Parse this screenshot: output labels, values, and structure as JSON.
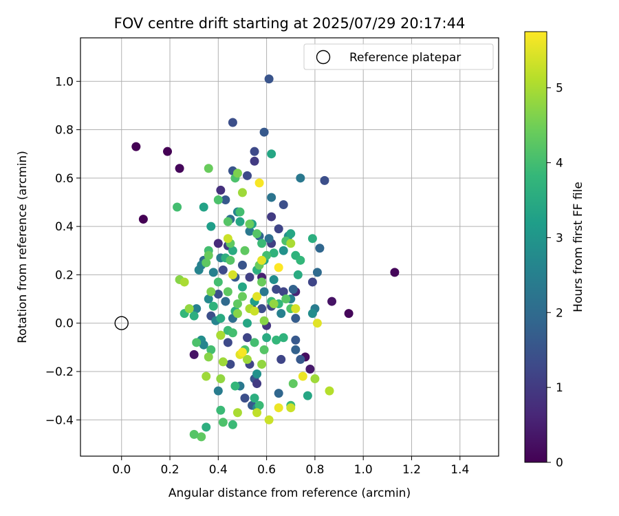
{
  "chart_data": {
    "type": "scatter",
    "title": "FOV centre drift starting at 2025/07/29 20:17:44",
    "xlabel": "Angular distance from reference (arcmin)",
    "ylabel": "Rotation from reference (arcmin)",
    "xlim": [
      -0.17,
      1.56
    ],
    "ylim": [
      -0.55,
      1.18
    ],
    "xticks": [
      0.0,
      0.2,
      0.4,
      0.6,
      0.8,
      1.0,
      1.2,
      1.4
    ],
    "yticks": [
      -0.4,
      -0.2,
      0.0,
      0.2,
      0.4,
      0.6,
      0.8,
      1.0
    ],
    "xtick_labels": [
      "0.0",
      "0.2",
      "0.4",
      "0.6",
      "0.8",
      "1.0",
      "1.2",
      "1.4"
    ],
    "ytick_labels": [
      "−0.4",
      "−0.2",
      "0.0",
      "0.2",
      "0.4",
      "0.6",
      "0.8",
      "1.0"
    ],
    "grid": true,
    "legend": {
      "placement": "top-right",
      "entries": [
        {
          "label": "Reference platepar",
          "marker": "open-circle",
          "color": "#000000"
        }
      ]
    },
    "reference_point": {
      "x": 0.0,
      "y": 0.0,
      "label": "Reference platepar"
    },
    "colorbar": {
      "label": "Hours from first FF file",
      "range": [
        0,
        5.75
      ],
      "ticks": [
        0,
        1,
        2,
        3,
        4,
        5
      ],
      "tick_labels": [
        "0",
        "1",
        "2",
        "3",
        "4",
        "5"
      ],
      "colormap": "viridis",
      "stops": [
        "#440154",
        "#482878",
        "#3e4989",
        "#31688e",
        "#26828e",
        "#1f9e89",
        "#35b779",
        "#6ece58",
        "#b5de2b",
        "#fde725"
      ]
    },
    "points": [
      [
        0.06,
        0.73,
        0.0
      ],
      [
        0.19,
        0.71,
        0.0
      ],
      [
        0.24,
        0.64,
        0.1
      ],
      [
        0.09,
        0.43,
        0.0
      ],
      [
        1.13,
        0.21,
        0.1
      ],
      [
        0.94,
        0.04,
        0.1
      ],
      [
        0.87,
        0.09,
        0.3
      ],
      [
        0.76,
        -0.14,
        0.2
      ],
      [
        0.78,
        -0.19,
        0.4
      ],
      [
        0.3,
        -0.13,
        0.3
      ],
      [
        0.61,
        1.01,
        1.5
      ],
      [
        0.46,
        0.83,
        1.4
      ],
      [
        0.59,
        0.79,
        1.6
      ],
      [
        0.55,
        0.71,
        1.3
      ],
      [
        0.55,
        0.67,
        1.0
      ],
      [
        0.46,
        0.63,
        1.5
      ],
      [
        0.52,
        0.61,
        1.3
      ],
      [
        0.41,
        0.55,
        0.8
      ],
      [
        0.43,
        0.51,
        1.6
      ],
      [
        0.84,
        0.59,
        1.4
      ],
      [
        0.67,
        0.49,
        1.4
      ],
      [
        0.62,
        0.44,
        1.0
      ],
      [
        0.65,
        0.39,
        1.2
      ],
      [
        0.62,
        0.33,
        1.1
      ],
      [
        0.5,
        0.24,
        1.5
      ],
      [
        0.4,
        0.33,
        0.7
      ],
      [
        0.44,
        0.32,
        1.0
      ],
      [
        0.42,
        0.22,
        1.3
      ],
      [
        0.47,
        0.19,
        1.6
      ],
      [
        0.53,
        0.19,
        1.1
      ],
      [
        0.58,
        0.19,
        0.5
      ],
      [
        0.64,
        0.14,
        1.3
      ],
      [
        0.67,
        0.13,
        1.2
      ],
      [
        0.72,
        0.13,
        0.6
      ],
      [
        0.71,
        0.14,
        1.8
      ],
      [
        0.79,
        0.17,
        1.2
      ],
      [
        0.82,
        0.31,
        1.9
      ],
      [
        0.81,
        0.21,
        2.0
      ],
      [
        0.54,
        0.06,
        1.0
      ],
      [
        0.58,
        0.06,
        1.4
      ],
      [
        0.6,
        -0.01,
        0.9
      ],
      [
        0.52,
        -0.06,
        1.2
      ],
      [
        0.44,
        -0.08,
        1.3
      ],
      [
        0.45,
        -0.17,
        1.3
      ],
      [
        0.53,
        -0.17,
        1.2
      ],
      [
        0.55,
        -0.23,
        1.5
      ],
      [
        0.56,
        -0.25,
        1.0
      ],
      [
        0.51,
        -0.31,
        1.4
      ],
      [
        0.54,
        -0.34,
        1.6
      ],
      [
        0.66,
        -0.15,
        1.2
      ],
      [
        0.72,
        -0.07,
        1.6
      ],
      [
        0.72,
        -0.11,
        1.8
      ],
      [
        0.74,
        -0.15,
        1.6
      ],
      [
        0.65,
        -0.29,
        1.9
      ],
      [
        0.72,
        0.02,
        1.7
      ],
      [
        0.62,
        0.07,
        1.2
      ],
      [
        0.55,
        0.09,
        1.3
      ],
      [
        0.4,
        0.12,
        1.4
      ],
      [
        0.37,
        0.03,
        1.4
      ],
      [
        0.34,
        0.26,
        2.0
      ],
      [
        0.74,
        0.6,
        2.3
      ],
      [
        0.62,
        0.52,
        2.2
      ],
      [
        0.48,
        0.46,
        2.6
      ],
      [
        0.45,
        0.43,
        2.1
      ],
      [
        0.53,
        0.38,
        2.3
      ],
      [
        0.41,
        0.27,
        2.4
      ],
      [
        0.38,
        0.21,
        2.5
      ],
      [
        0.36,
        0.1,
        2.7
      ],
      [
        0.32,
        0.22,
        2.6
      ],
      [
        0.33,
        0.24,
        2.5
      ],
      [
        0.31,
        0.06,
        2.5
      ],
      [
        0.33,
        -0.07,
        2.8
      ],
      [
        0.34,
        -0.09,
        2.6
      ],
      [
        0.4,
        -0.28,
        2.4
      ],
      [
        0.49,
        -0.26,
        2.3
      ],
      [
        0.56,
        -0.21,
        2.9
      ],
      [
        0.56,
        -0.35,
        2.7
      ],
      [
        0.59,
        0.13,
        2.3
      ],
      [
        0.63,
        0.18,
        2.8
      ],
      [
        0.67,
        0.3,
        2.9
      ],
      [
        0.69,
        0.36,
        2.8
      ],
      [
        0.7,
        0.1,
        2.5
      ],
      [
        0.8,
        0.06,
        2.4
      ],
      [
        0.79,
        0.04,
        2.8
      ],
      [
        0.66,
        0.04,
        2.5
      ],
      [
        0.61,
        0.35,
        2.1
      ],
      [
        0.57,
        0.36,
        1.9
      ],
      [
        0.43,
        0.09,
        2.0
      ],
      [
        0.46,
        0.02,
        2.1
      ],
      [
        0.39,
        0.01,
        2.6
      ],
      [
        0.62,
        0.7,
        3.4
      ],
      [
        0.34,
        0.48,
        3.3
      ],
      [
        0.37,
        0.4,
        3.2
      ],
      [
        0.49,
        0.42,
        3.4
      ],
      [
        0.54,
        0.41,
        3.3
      ],
      [
        0.46,
        0.3,
        3.5
      ],
      [
        0.43,
        0.27,
        3.6
      ],
      [
        0.59,
        0.26,
        3.3
      ],
      [
        0.63,
        0.29,
        3.7
      ],
      [
        0.7,
        0.37,
        3.4
      ],
      [
        0.73,
        0.2,
        3.5
      ],
      [
        0.72,
        0.28,
        3.7
      ],
      [
        0.74,
        0.26,
        3.8
      ],
      [
        0.79,
        0.35,
        3.6
      ],
      [
        0.77,
        -0.3,
        3.4
      ],
      [
        0.7,
        -0.34,
        3.9
      ],
      [
        0.55,
        -0.31,
        3.6
      ],
      [
        0.6,
        -0.06,
        3.5
      ],
      [
        0.64,
        -0.07,
        3.8
      ],
      [
        0.67,
        -0.06,
        3.7
      ],
      [
        0.65,
        0.08,
        3.8
      ],
      [
        0.62,
        0.09,
        3.9
      ],
      [
        0.56,
        0.22,
        3.6
      ],
      [
        0.58,
        0.33,
        3.9
      ],
      [
        0.5,
        0.15,
        3.4
      ],
      [
        0.55,
        0.09,
        3.2
      ],
      [
        0.52,
        0.0,
        3.4
      ],
      [
        0.47,
        0.05,
        3.6
      ],
      [
        0.41,
        0.02,
        3.5
      ],
      [
        0.38,
        0.07,
        3.7
      ],
      [
        0.3,
        0.03,
        3.6
      ],
      [
        0.26,
        0.04,
        3.8
      ],
      [
        0.44,
        -0.03,
        3.9
      ],
      [
        0.46,
        -0.04,
        4.0
      ],
      [
        0.47,
        -0.26,
        3.8
      ],
      [
        0.57,
        -0.34,
        3.9
      ],
      [
        0.41,
        -0.36,
        3.9
      ],
      [
        0.42,
        -0.41,
        4.1
      ],
      [
        0.46,
        -0.42,
        3.9
      ],
      [
        0.35,
        -0.43,
        3.6
      ],
      [
        0.23,
        0.48,
        4.0
      ],
      [
        0.36,
        0.3,
        4.0
      ],
      [
        0.4,
        0.51,
        4.1
      ],
      [
        0.47,
        0.6,
        4.1
      ],
      [
        0.49,
        0.46,
        4.0
      ],
      [
        0.44,
        0.42,
        4.2
      ],
      [
        0.45,
        0.33,
        4.3
      ],
      [
        0.53,
        0.41,
        4.4
      ],
      [
        0.56,
        0.37,
        4.2
      ],
      [
        0.6,
        0.28,
        4.0
      ],
      [
        0.68,
        0.34,
        4.1
      ],
      [
        0.68,
        0.1,
        4.2
      ],
      [
        0.7,
        0.06,
        4.1
      ],
      [
        0.71,
        -0.25,
        4.3
      ],
      [
        0.59,
        -0.11,
        4.2
      ],
      [
        0.55,
        -0.08,
        4.0
      ],
      [
        0.51,
        -0.11,
        4.1
      ],
      [
        0.41,
        -0.05,
        4.2
      ],
      [
        0.37,
        -0.11,
        4.0
      ],
      [
        0.31,
        -0.08,
        4.1
      ],
      [
        0.33,
        -0.47,
        4.3
      ],
      [
        0.3,
        -0.46,
        4.2
      ],
      [
        0.35,
        0.25,
        4.3
      ],
      [
        0.36,
        0.28,
        4.4
      ],
      [
        0.4,
        0.17,
        4.0
      ],
      [
        0.45,
        0.26,
        4.2
      ],
      [
        0.51,
        0.3,
        4.3
      ],
      [
        0.57,
        0.24,
        4.4
      ],
      [
        0.58,
        0.17,
        4.4
      ],
      [
        0.48,
        0.08,
        4.3
      ],
      [
        0.5,
        0.11,
        4.4
      ],
      [
        0.44,
        0.13,
        4.3
      ],
      [
        0.36,
        0.64,
        4.4
      ],
      [
        0.48,
        0.62,
        4.6
      ],
      [
        0.5,
        0.54,
        4.9
      ],
      [
        0.37,
        0.13,
        4.6
      ],
      [
        0.28,
        0.06,
        4.8
      ],
      [
        0.24,
        0.18,
        4.7
      ],
      [
        0.36,
        -0.14,
        4.7
      ],
      [
        0.42,
        -0.16,
        4.9
      ],
      [
        0.41,
        -0.23,
        4.8
      ],
      [
        0.35,
        -0.22,
        4.9
      ],
      [
        0.48,
        -0.37,
        5.0
      ],
      [
        0.52,
        -0.15,
        4.9
      ],
      [
        0.58,
        -0.17,
        4.8
      ],
      [
        0.59,
        0.01,
        4.7
      ],
      [
        0.63,
        0.08,
        4.8
      ],
      [
        0.7,
        0.33,
        5.0
      ],
      [
        0.8,
        -0.23,
        4.9
      ],
      [
        0.86,
        -0.28,
        5.1
      ],
      [
        0.53,
        0.06,
        5.0
      ],
      [
        0.48,
        0.04,
        4.7
      ],
      [
        0.41,
        -0.05,
        5.0
      ],
      [
        0.26,
        0.17,
        5.0
      ],
      [
        0.44,
        0.35,
        5.3
      ],
      [
        0.55,
        0.05,
        5.3
      ],
      [
        0.56,
        0.11,
        5.5
      ],
      [
        0.49,
        -0.13,
        5.5
      ],
      [
        0.46,
        0.2,
        5.4
      ],
      [
        0.56,
        -0.37,
        5.2
      ],
      [
        0.61,
        -0.4,
        5.3
      ],
      [
        0.65,
        -0.35,
        5.6
      ],
      [
        0.7,
        -0.35,
        5.3
      ],
      [
        0.75,
        -0.22,
        5.6
      ],
      [
        0.81,
        0.0,
        5.5
      ],
      [
        0.57,
        0.58,
        5.7
      ],
      [
        0.65,
        0.23,
        5.8
      ],
      [
        0.72,
        0.06,
        5.4
      ],
      [
        0.58,
        0.26,
        5.5
      ],
      [
        0.5,
        -0.12,
        5.7
      ]
    ]
  }
}
